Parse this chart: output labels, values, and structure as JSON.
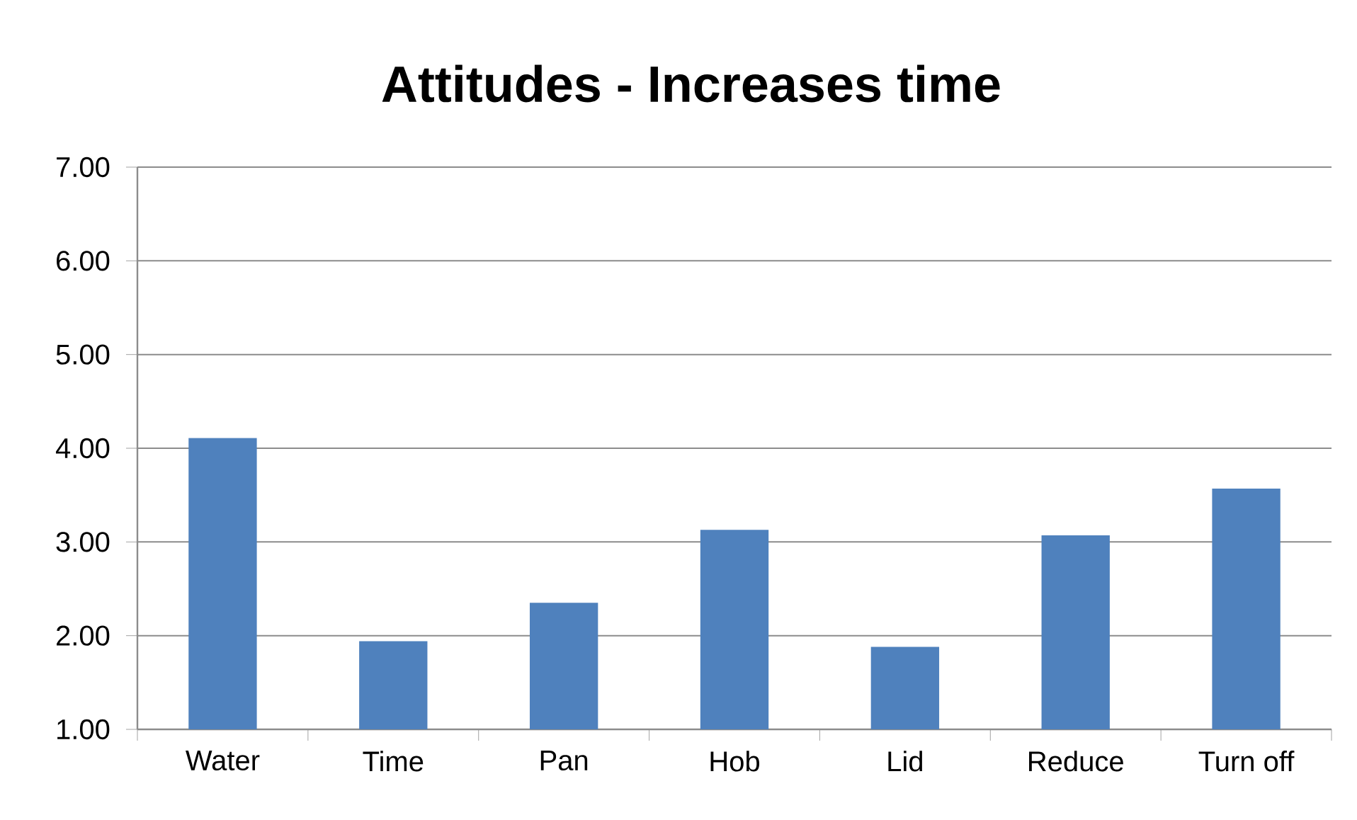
{
  "chart_data": {
    "type": "bar",
    "title": "Attitudes - Increases time",
    "categories": [
      "Water",
      "Time",
      "Pan",
      "Hob",
      "Lid",
      "Reduce",
      "Turn off"
    ],
    "values": [
      4.11,
      1.94,
      2.35,
      3.13,
      1.88,
      3.07,
      3.57
    ],
    "color": "#4f81bd",
    "ylim": [
      1,
      7
    ],
    "yticks": [
      {
        "value": 1,
        "label": "1.00"
      },
      {
        "value": 2,
        "label": "2.00"
      },
      {
        "value": 3,
        "label": "3.00"
      },
      {
        "value": 4,
        "label": "4.00"
      },
      {
        "value": 5,
        "label": "5.00"
      },
      {
        "value": 6,
        "label": "6.00"
      },
      {
        "value": 7,
        "label": "7.00"
      }
    ],
    "grid": "y"
  }
}
